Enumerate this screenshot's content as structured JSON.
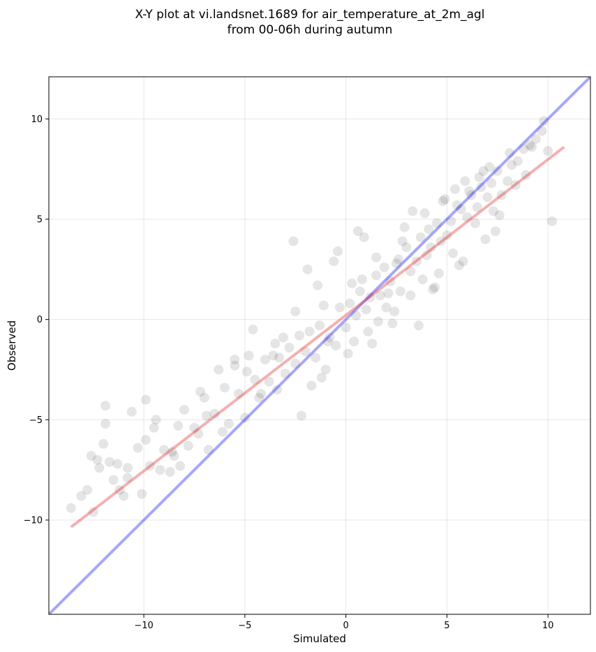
{
  "chart_data": {
    "type": "scatter",
    "title_lines": [
      "X-Y plot at vi.landsnet.1689 for air_temperature_at_2m_agl",
      "from 00-06h during autumn"
    ],
    "xlabel": "Simulated",
    "ylabel": "Observed",
    "xlim": [
      -14.7,
      12.1
    ],
    "ylim": [
      -14.7,
      12.1
    ],
    "xticks": [
      -10,
      -5,
      0,
      5,
      10
    ],
    "yticks": [
      -10,
      -5,
      0,
      5,
      10
    ],
    "xtick_labels": [
      "−10",
      "−5",
      "0",
      "5",
      "10"
    ],
    "ytick_labels": [
      "−10",
      "−5",
      "0",
      "5",
      "10"
    ],
    "grid": true,
    "colors": {
      "points": "#000000",
      "identity_line": "#0000ff",
      "fit_line": "#e31a1c"
    },
    "series": [
      {
        "kind": "points",
        "x": [
          -13.6,
          -13.1,
          -12.8,
          -12.5,
          -12.3,
          -12.2,
          -12.0,
          -11.9,
          -11.7,
          -11.5,
          -11.3,
          -11.0,
          -10.8,
          -10.6,
          -10.3,
          -10.1,
          -9.9,
          -9.7,
          -9.4,
          -9.2,
          -9.0,
          -8.7,
          -8.5,
          -8.3,
          -8.0,
          -7.8,
          -7.5,
          -7.3,
          -7.0,
          -6.8,
          -6.5,
          -6.3,
          -6.0,
          -5.8,
          -5.5,
          -5.3,
          -5.0,
          -4.8,
          -4.5,
          -4.3,
          -4.0,
          -3.8,
          -3.5,
          -3.3,
          -3.0,
          -2.8,
          -2.5,
          -2.3,
          -2.0,
          -1.8,
          -1.5,
          -1.3,
          -1.0,
          -0.8,
          -0.5,
          -0.3,
          0.0,
          0.2,
          0.5,
          0.7,
          1.0,
          1.2,
          1.5,
          1.7,
          2.0,
          2.2,
          2.5,
          2.7,
          3.0,
          3.2,
          3.5,
          3.7,
          4.0,
          4.2,
          4.5,
          4.7,
          5.0,
          5.2,
          5.5,
          5.7,
          6.0,
          6.2,
          6.5,
          6.7,
          7.0,
          7.2,
          7.5,
          7.7,
          8.0,
          8.2,
          8.5,
          8.8,
          9.1,
          9.4,
          9.7,
          10.0,
          10.2,
          -11.9,
          -10.8,
          -9.5,
          -8.2,
          -6.9,
          -5.5,
          -4.2,
          -3.1,
          -2.5,
          -1.7,
          -0.9,
          0.3,
          1.1,
          1.9,
          2.8,
          3.6,
          4.4,
          5.3,
          6.1,
          6.9,
          7.6,
          8.4,
          9.2,
          -12.6,
          -11.2,
          -9.9,
          -8.6,
          -7.2,
          -6.1,
          -4.9,
          -3.6,
          -2.2,
          -1.1,
          0.1,
          0.8,
          1.5,
          2.3,
          3.2,
          4.1,
          4.9,
          5.8,
          6.6,
          7.3,
          8.1,
          8.9,
          9.8,
          -2.6,
          -1.4,
          0.6,
          2.4,
          3.9,
          5.6,
          7.1,
          -4.6,
          -3.4,
          -1.9,
          -0.4,
          1.3,
          2.9,
          4.3,
          5.9,
          7.4,
          -0.6,
          0.9,
          2.1,
          3.3,
          4.6,
          5.4,
          6.4,
          -1.2,
          0.4,
          1.6,
          2.6,
          3.8,
          4.8,
          6.8
        ],
        "y": [
          -9.4,
          -8.8,
          -8.5,
          -9.6,
          -7.0,
          -7.4,
          -6.2,
          -4.3,
          -7.1,
          -8.0,
          -7.2,
          -8.8,
          -7.9,
          -4.6,
          -6.4,
          -8.7,
          -6.0,
          -7.3,
          -5.0,
          -7.5,
          -6.5,
          -7.6,
          -6.8,
          -5.3,
          -4.5,
          -6.3,
          -5.4,
          -5.7,
          -3.9,
          -6.5,
          -4.7,
          -2.5,
          -3.4,
          -5.2,
          -2.0,
          -3.7,
          -4.9,
          -1.8,
          -3.0,
          -3.9,
          -2.0,
          -3.1,
          -1.2,
          -1.9,
          -2.7,
          -1.4,
          -2.2,
          -0.8,
          -1.6,
          -0.6,
          -1.9,
          -0.3,
          -2.5,
          -0.9,
          -1.3,
          0.6,
          -0.4,
          0.8,
          0.2,
          1.4,
          0.5,
          1.1,
          2.2,
          1.2,
          0.6,
          1.9,
          2.8,
          1.4,
          3.6,
          2.4,
          2.9,
          4.1,
          3.2,
          3.6,
          4.8,
          3.9,
          4.2,
          4.9,
          5.7,
          5.5,
          5.1,
          6.2,
          5.6,
          6.6,
          6.1,
          6.8,
          7.4,
          6.2,
          6.9,
          7.7,
          7.9,
          8.5,
          8.7,
          9.0,
          9.4,
          8.4,
          4.9,
          -5.2,
          -7.4,
          -5.4,
          -7.3,
          -4.8,
          -2.3,
          -3.7,
          -0.9,
          0.4,
          -3.3,
          -1.1,
          1.8,
          -0.6,
          2.6,
          3.9,
          -0.3,
          1.6,
          3.3,
          6.4,
          4.0,
          5.2,
          6.7,
          8.6,
          -6.8,
          -8.5,
          -4.0,
          -6.6,
          -3.6,
          -5.6,
          -2.6,
          -1.8,
          -4.8,
          0.7,
          -1.7,
          2.0,
          3.1,
          -0.2,
          1.2,
          4.5,
          6.0,
          2.9,
          7.1,
          5.4,
          8.3,
          7.2,
          9.9,
          3.9,
          1.7,
          4.4,
          0.4,
          5.3,
          2.7,
          7.6,
          -0.5,
          -3.5,
          2.5,
          3.4,
          -1.2,
          4.6,
          1.5,
          6.9,
          4.4,
          2.9,
          4.1,
          1.3,
          5.4,
          2.3,
          6.5,
          4.8,
          -2.9,
          -1.1,
          -0.1,
          3.0,
          2.0,
          5.9,
          7.4
        ]
      },
      {
        "kind": "line",
        "name": "",
        "x": [
          -14.7,
          12.1
        ],
        "y": [
          -14.7,
          12.1
        ]
      },
      {
        "kind": "line",
        "name": "",
        "x": [
          -13.6,
          10.8
        ],
        "y": [
          -10.35,
          8.6
        ]
      }
    ]
  }
}
